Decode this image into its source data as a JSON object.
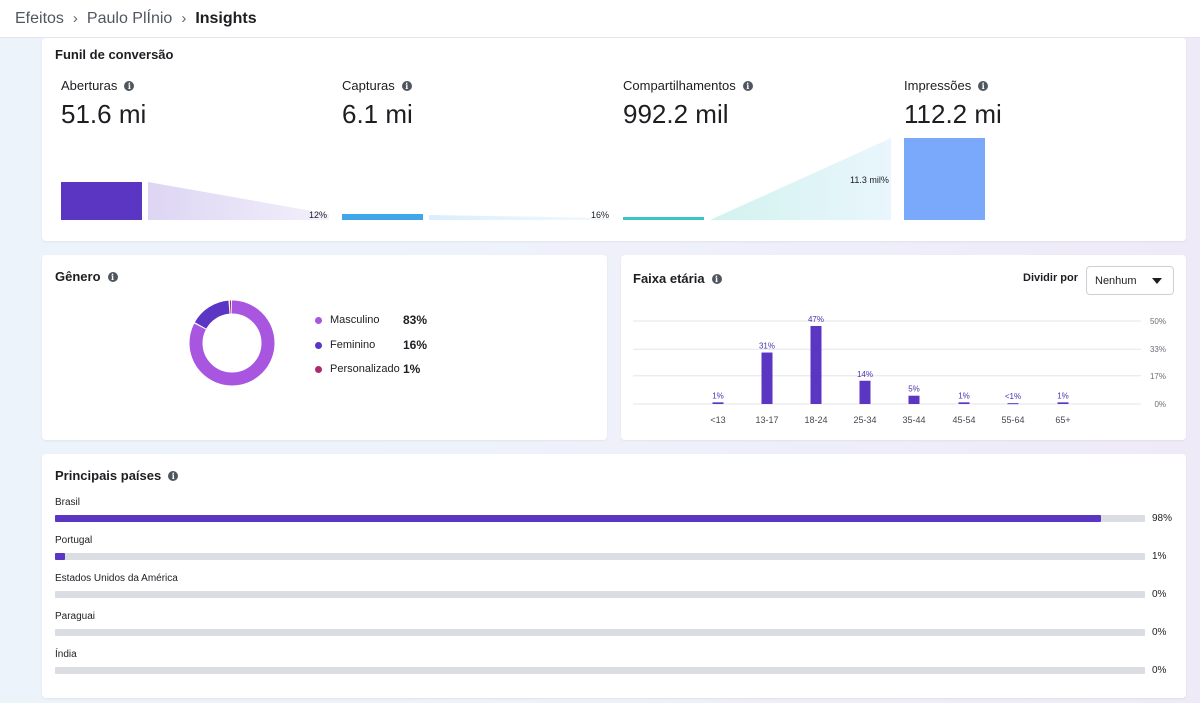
{
  "breadcrumb": {
    "items": [
      "Efeitos",
      "Paulo PlÍnio",
      "Insights"
    ],
    "separator": "›"
  },
  "funnel": {
    "title": "Funil de conversão",
    "metrics": [
      {
        "label": "Aberturas",
        "value": "51.6 mi"
      },
      {
        "label": "Capturas",
        "value": "6.1 mi"
      },
      {
        "label": "Compartilhamentos",
        "value": "992.2 mil"
      },
      {
        "label": "Impressões",
        "value": "112.2 mi"
      }
    ],
    "conversion_rates": [
      "12%",
      "16%",
      "11.3 mil%"
    ]
  },
  "gender": {
    "title": "Gênero",
    "items": [
      {
        "label": "Masculino",
        "value": "83%",
        "share": 83,
        "color": "#a855e0"
      },
      {
        "label": "Feminino",
        "value": "16%",
        "share": 16,
        "color": "#5b35c4"
      },
      {
        "label": "Personalizado",
        "value": "1%",
        "share": 1,
        "color": "#b0296e"
      }
    ]
  },
  "age": {
    "title": "Faixa etária",
    "split_label": "Dividir por",
    "split_value": "Nenhum"
  },
  "countries": {
    "title": "Principais países",
    "items": [
      {
        "name": "Brasil",
        "pct": "98%",
        "value": 98
      },
      {
        "name": "Portugal",
        "pct": "1%",
        "value": 1
      },
      {
        "name": "Estados Unidos da América",
        "pct": "0%",
        "value": 0
      },
      {
        "name": "Paraguai",
        "pct": "0%",
        "value": 0
      },
      {
        "name": "Índia",
        "pct": "0%",
        "value": 0
      }
    ]
  },
  "chart_data": {
    "type": "bar",
    "title": "Faixa etária",
    "categories": [
      "<13",
      "13-17",
      "18-24",
      "25-34",
      "35-44",
      "45-54",
      "55-64",
      "65+"
    ],
    "values": [
      1,
      31,
      47,
      14,
      5,
      1,
      0.5,
      1
    ],
    "data_labels": [
      "1%",
      "31%",
      "47%",
      "14%",
      "5%",
      "1%",
      "<1%",
      "1%"
    ],
    "ytick_labels": [
      "50%",
      "33%",
      "17%",
      "0%"
    ],
    "yticks": [
      50,
      33,
      17,
      0
    ],
    "ylim": [
      0,
      50
    ],
    "color": "#5a36c2",
    "xlabel": "",
    "ylabel": ""
  }
}
